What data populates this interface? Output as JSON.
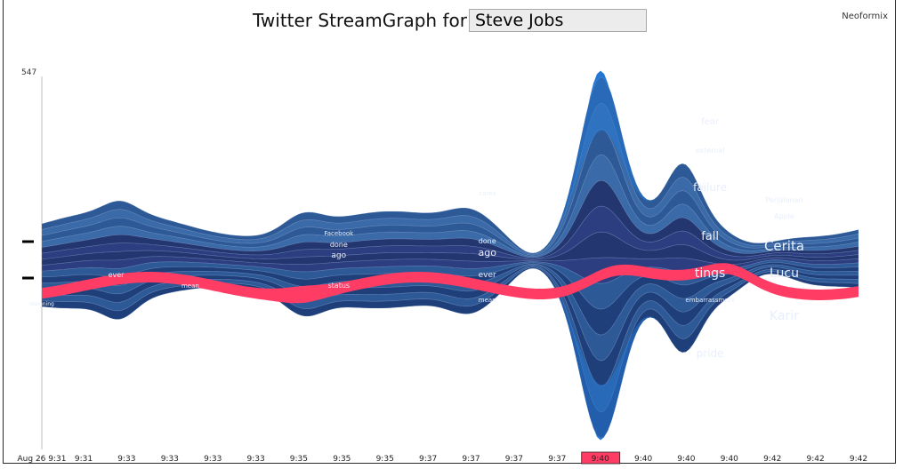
{
  "header": {
    "title": "Twitter StreamGraph for",
    "query": "Steve Jobs",
    "brand": "Neoformix"
  },
  "chart_data": {
    "type": "area",
    "style": "streamgraph",
    "y_max_label": "547",
    "x_ticks": [
      "Aug 26 9:31",
      "9:31",
      "9:33",
      "9:33",
      "9:33",
      "9:33",
      "9:35",
      "9:35",
      "9:35",
      "9:37",
      "9:37",
      "9:37",
      "9:37",
      "9:40",
      "9:40",
      "9:40",
      "9:40",
      "9:42",
      "9:42",
      "9:42"
    ],
    "highlighted_tick_index": 13,
    "highlight_color": "#ff3c64",
    "band_colors": [
      "#1f3f7a",
      "#24366f",
      "#2c3e80",
      "#2d5a96",
      "#3a6aa8"
    ],
    "spike_color": "#2478d4",
    "word_labels": [
      {
        "text": "fear",
        "x": 9.4,
        "y": 150,
        "size": 10
      },
      {
        "text": "external",
        "x": 9.4,
        "y": 118,
        "size": 8
      },
      {
        "text": "failure",
        "x": 9.4,
        "y": 75,
        "size": 12
      },
      {
        "text": "fall",
        "x": 9.4,
        "y": 20,
        "size": 13
      },
      {
        "text": "tings",
        "x": 9.4,
        "y": -22,
        "size": 14
      },
      {
        "text": "embarrassment",
        "x": 9.4,
        "y": -50,
        "size": 7
      },
      {
        "text": "pride",
        "x": 9.4,
        "y": -112,
        "size": 12
      },
      {
        "text": "Perjalanan",
        "x": 9.41,
        "y": 62,
        "size": 8
      },
      {
        "text": "Apple",
        "x": 9.41,
        "y": 44,
        "size": 8
      },
      {
        "text": "Cerita",
        "x": 9.41,
        "y": 8,
        "size": 15
      },
      {
        "text": "Lucu",
        "x": 9.41,
        "y": -22,
        "size": 14
      },
      {
        "text": "Karir",
        "x": 9.41,
        "y": -70,
        "size": 14
      },
      {
        "text": "cares",
        "x": 9.37,
        "y": 70,
        "size": 7
      },
      {
        "text": "done",
        "x": 9.37,
        "y": 16,
        "size": 8
      },
      {
        "text": "ago",
        "x": 9.37,
        "y": 2,
        "size": 11
      },
      {
        "text": "ever",
        "x": 9.37,
        "y": -22,
        "size": 9
      },
      {
        "text": "mean",
        "x": 9.37,
        "y": -50,
        "size": 7
      },
      {
        "text": "Facebook",
        "x": 9.35,
        "y": 25,
        "size": 7
      },
      {
        "text": "done",
        "x": 9.35,
        "y": 12,
        "size": 8
      },
      {
        "text": "ago",
        "x": 9.35,
        "y": 0,
        "size": 9
      },
      {
        "text": "status",
        "x": 9.35,
        "y": -34,
        "size": 8
      },
      {
        "text": "ever",
        "x": 9.32,
        "y": -22,
        "size": 8
      },
      {
        "text": "mean",
        "x": 9.33,
        "y": -34,
        "size": 7
      },
      {
        "text": "resigning",
        "x": 9.31,
        "y": -54,
        "size": 6
      }
    ]
  }
}
